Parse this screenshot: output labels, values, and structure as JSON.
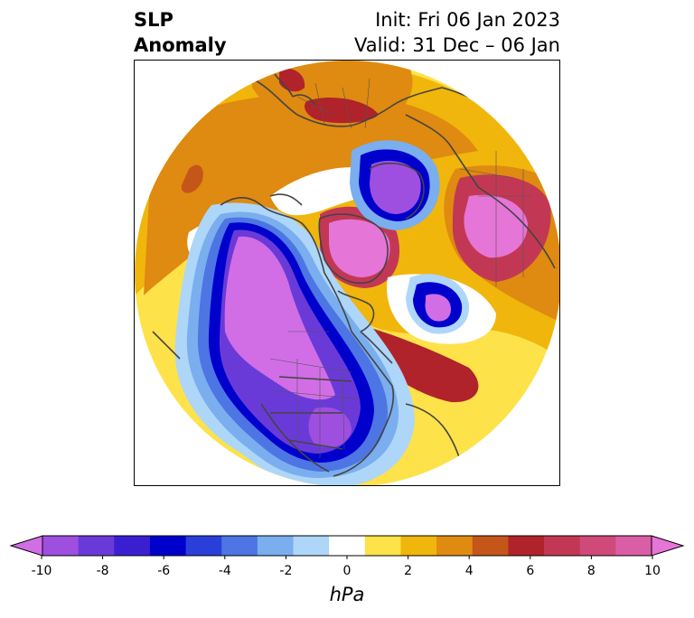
{
  "title": {
    "left_line1": "SLP",
    "left_line2": "Anomaly",
    "right_line1": "Init: Fri 06 Jan 2023",
    "right_line2": "Valid: 31 Dec – 06 Jan"
  },
  "colorbar": {
    "units": "hPa",
    "ticks": [
      "-10",
      "-8",
      "-6",
      "-4",
      "-2",
      "0",
      "2",
      "4",
      "6",
      "8",
      "10"
    ],
    "colors": [
      "#d16ee6",
      "#9e4fe0",
      "#6a3ad8",
      "#3a1fd0",
      "#0000cc",
      "#2a3fd9",
      "#4d75e3",
      "#7aaeee",
      "#aed6f8",
      "#ffffff",
      "#fde24a",
      "#f0b60c",
      "#df8a10",
      "#c4561a",
      "#b0232a",
      "#c23854",
      "#cf4a78",
      "#da5ea6",
      "#e675d8"
    ]
  },
  "map": {
    "projection": "north-polar-stereographic",
    "field": "SLP anomaly"
  }
}
